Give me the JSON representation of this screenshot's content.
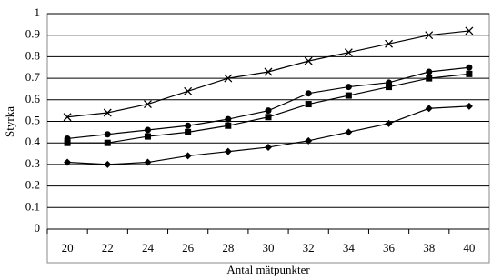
{
  "chart_data": {
    "type": "line",
    "x_label": "Antal mätpunkter",
    "y_label": "Styrka",
    "categories": [
      "20",
      "22",
      "24",
      "26",
      "28",
      "30",
      "32",
      "34",
      "36",
      "38",
      "40"
    ],
    "series": [
      {
        "color": "#000000",
        "marker": "x",
        "values": [
          0.52,
          0.54,
          0.58,
          0.64,
          0.7,
          0.73,
          0.78,
          0.82,
          0.86,
          0.9,
          0.92
        ]
      },
      {
        "color": "#000000",
        "marker": "circle",
        "values": [
          0.42,
          0.44,
          0.46,
          0.48,
          0.51,
          0.55,
          0.63,
          0.66,
          0.68,
          0.73,
          0.75
        ]
      },
      {
        "color": "#000000",
        "marker": "square",
        "values": [
          0.4,
          0.4,
          0.43,
          0.45,
          0.48,
          0.52,
          0.58,
          0.62,
          0.66,
          0.7,
          0.72
        ]
      },
      {
        "color": "#000000",
        "marker": "diamond",
        "values": [
          0.31,
          0.3,
          0.31,
          0.34,
          0.36,
          0.38,
          0.41,
          0.45,
          0.49,
          0.56,
          0.57
        ]
      }
    ],
    "ylim": [
      0,
      1
    ],
    "yticks": [
      0,
      0.1,
      0.2,
      0.3,
      0.4,
      0.5,
      0.6,
      0.7,
      0.8,
      0.9,
      1
    ],
    "grid": true
  }
}
